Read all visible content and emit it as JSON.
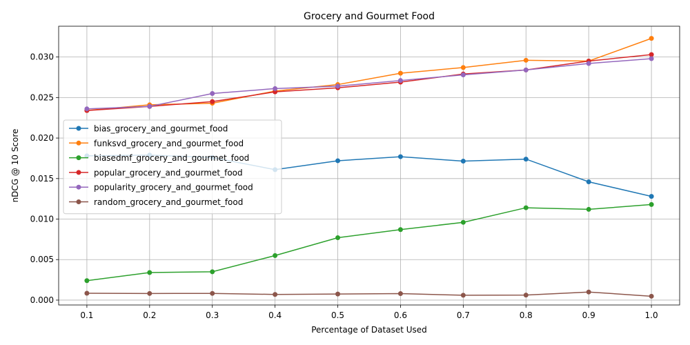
{
  "chart_data": {
    "type": "line",
    "title": "Grocery and Gourmet Food",
    "xlabel": "Percentage of Dataset Used",
    "ylabel": "nDCG @ 10 Score",
    "x": [
      0.1,
      0.2,
      0.3,
      0.4,
      0.5,
      0.6,
      0.7,
      0.8,
      0.9,
      1.0
    ],
    "x_tick_labels": [
      "0.1",
      "0.2",
      "0.3",
      "0.4",
      "0.5",
      "0.6",
      "0.7",
      "0.8",
      "0.9",
      "1.0"
    ],
    "y_ticks": [
      0.0,
      0.005,
      0.01,
      0.015,
      0.02,
      0.025,
      0.03
    ],
    "y_tick_labels": [
      "0.000",
      "0.005",
      "0.010",
      "0.015",
      "0.020",
      "0.025",
      "0.030"
    ],
    "xlim": [
      0.055,
      1.045
    ],
    "ylim": [
      -0.0006,
      0.0338
    ],
    "grid": true,
    "legend_position": "center-left",
    "series": [
      {
        "name": "bias_grocery_and_gourmet_food",
        "color": "#1f77b4",
        "values": [
          0.0178,
          0.0179,
          0.0176,
          0.0161,
          0.0172,
          0.0177,
          0.01715,
          0.0174,
          0.0146,
          0.0128
        ]
      },
      {
        "name": "funksvd_grocery_and_gourmet_food",
        "color": "#ff7f0e",
        "values": [
          0.0234,
          0.0241,
          0.0243,
          0.0258,
          0.0266,
          0.028,
          0.0287,
          0.0296,
          0.0295,
          0.0323
        ]
      },
      {
        "name": "biasedmf_grocery_and_gourmet_food",
        "color": "#2ca02c",
        "values": [
          0.0024,
          0.0034,
          0.0035,
          0.0055,
          0.0077,
          0.0087,
          0.0096,
          0.0114,
          0.0112,
          0.0118
        ]
      },
      {
        "name": "popular_grocery_and_gourmet_food",
        "color": "#d62728",
        "values": [
          0.0234,
          0.0239,
          0.0245,
          0.0257,
          0.0262,
          0.0269,
          0.0279,
          0.0284,
          0.0295,
          0.0303
        ]
      },
      {
        "name": "popularity_grocery_and_gourmet_food",
        "color": "#9467bd",
        "values": [
          0.0236,
          0.0239,
          0.0255,
          0.0261,
          0.0264,
          0.0271,
          0.0278,
          0.0284,
          0.0292,
          0.0298
        ]
      },
      {
        "name": "random_grocery_and_gourmet_food",
        "color": "#8c564b",
        "values": [
          0.00085,
          0.00082,
          0.00083,
          0.0007,
          0.00075,
          0.0008,
          0.0006,
          0.00062,
          0.001,
          0.00048
        ]
      }
    ]
  }
}
